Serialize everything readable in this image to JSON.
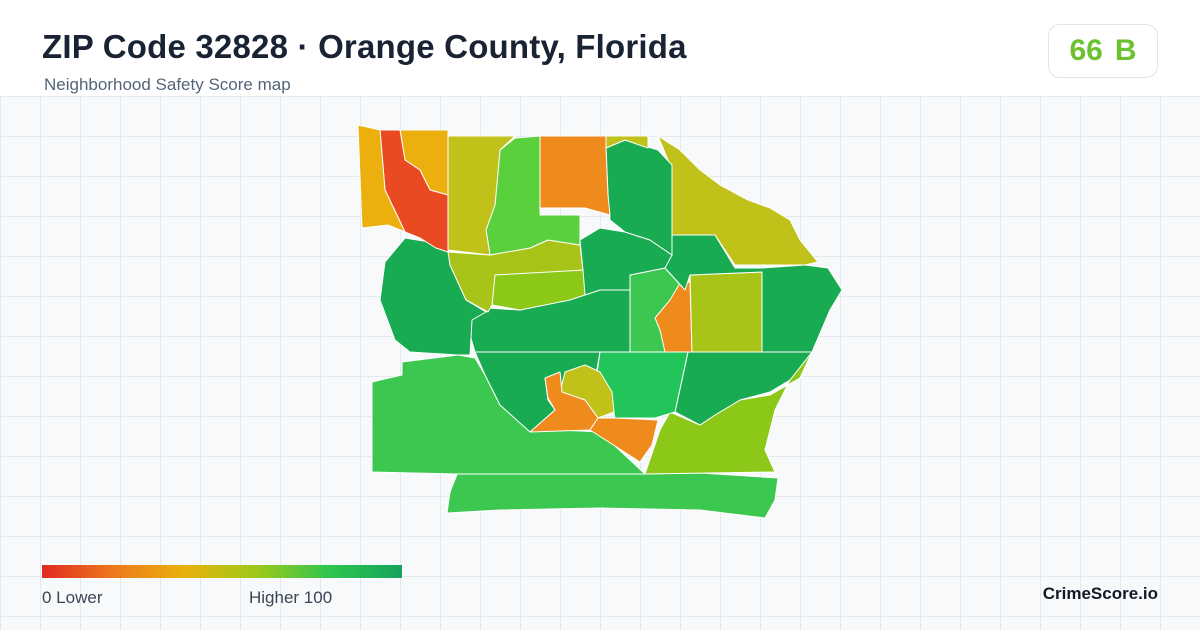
{
  "header": {
    "title": "ZIP Code 32828 · Orange County, Florida",
    "subtitle": "Neighborhood Safety Score map"
  },
  "score": {
    "value": "66",
    "grade": "B",
    "color": "#6cc22f"
  },
  "legend": {
    "low_label": "0  Lower",
    "high_label": "Higher  100",
    "gradient": [
      "#e02a22",
      "#ee7a1c",
      "#e8b20c",
      "#9cc91a",
      "#2ec550",
      "#16a35a"
    ]
  },
  "brand": "CrimeScore.io",
  "palette": {
    "red": "#ea4a22",
    "orange": "#ef8a1c",
    "amber": "#ebb00e",
    "olive": "#c0c21a",
    "yellow_green": "#a8c418",
    "lime": "#8cc818",
    "light_green": "#5ad03c",
    "green": "#3cc850",
    "bright_green": "#22c55a",
    "dark_green": "#18ab52"
  },
  "regions": [
    {
      "name": "nw-strip",
      "color": "amber"
    },
    {
      "name": "nw-red",
      "color": "red"
    },
    {
      "name": "nw-amber-small",
      "color": "amber"
    },
    {
      "name": "north-olive-west",
      "color": "olive"
    },
    {
      "name": "north-light-green",
      "color": "light_green"
    },
    {
      "name": "north-orange",
      "color": "orange"
    },
    {
      "name": "north-olive-small",
      "color": "olive"
    },
    {
      "name": "north-dark-green",
      "color": "dark_green"
    },
    {
      "name": "ne-olive",
      "color": "olive"
    },
    {
      "name": "west-green",
      "color": "dark_green"
    },
    {
      "name": "central-west-yg",
      "color": "yellow_green"
    },
    {
      "name": "central-lime",
      "color": "lime"
    },
    {
      "name": "center-dark-green",
      "color": "dark_green"
    },
    {
      "name": "east-green",
      "color": "dark_green"
    },
    {
      "name": "east-yg",
      "color": "yellow_green"
    },
    {
      "name": "mid-light-green",
      "color": "green"
    },
    {
      "name": "mid-orange",
      "color": "orange"
    },
    {
      "name": "central-band",
      "color": "dark_green"
    },
    {
      "name": "south-center-dark",
      "color": "dark_green"
    },
    {
      "name": "south-center-bright",
      "color": "bright_green"
    },
    {
      "name": "south-olive-small",
      "color": "olive"
    },
    {
      "name": "south-orange-west",
      "color": "orange"
    },
    {
      "name": "south-orange-east",
      "color": "orange"
    },
    {
      "name": "se-dark-green",
      "color": "dark_green"
    },
    {
      "name": "se-lime",
      "color": "lime"
    },
    {
      "name": "sw-green",
      "color": "green"
    },
    {
      "name": "south-band",
      "color": "green"
    }
  ]
}
